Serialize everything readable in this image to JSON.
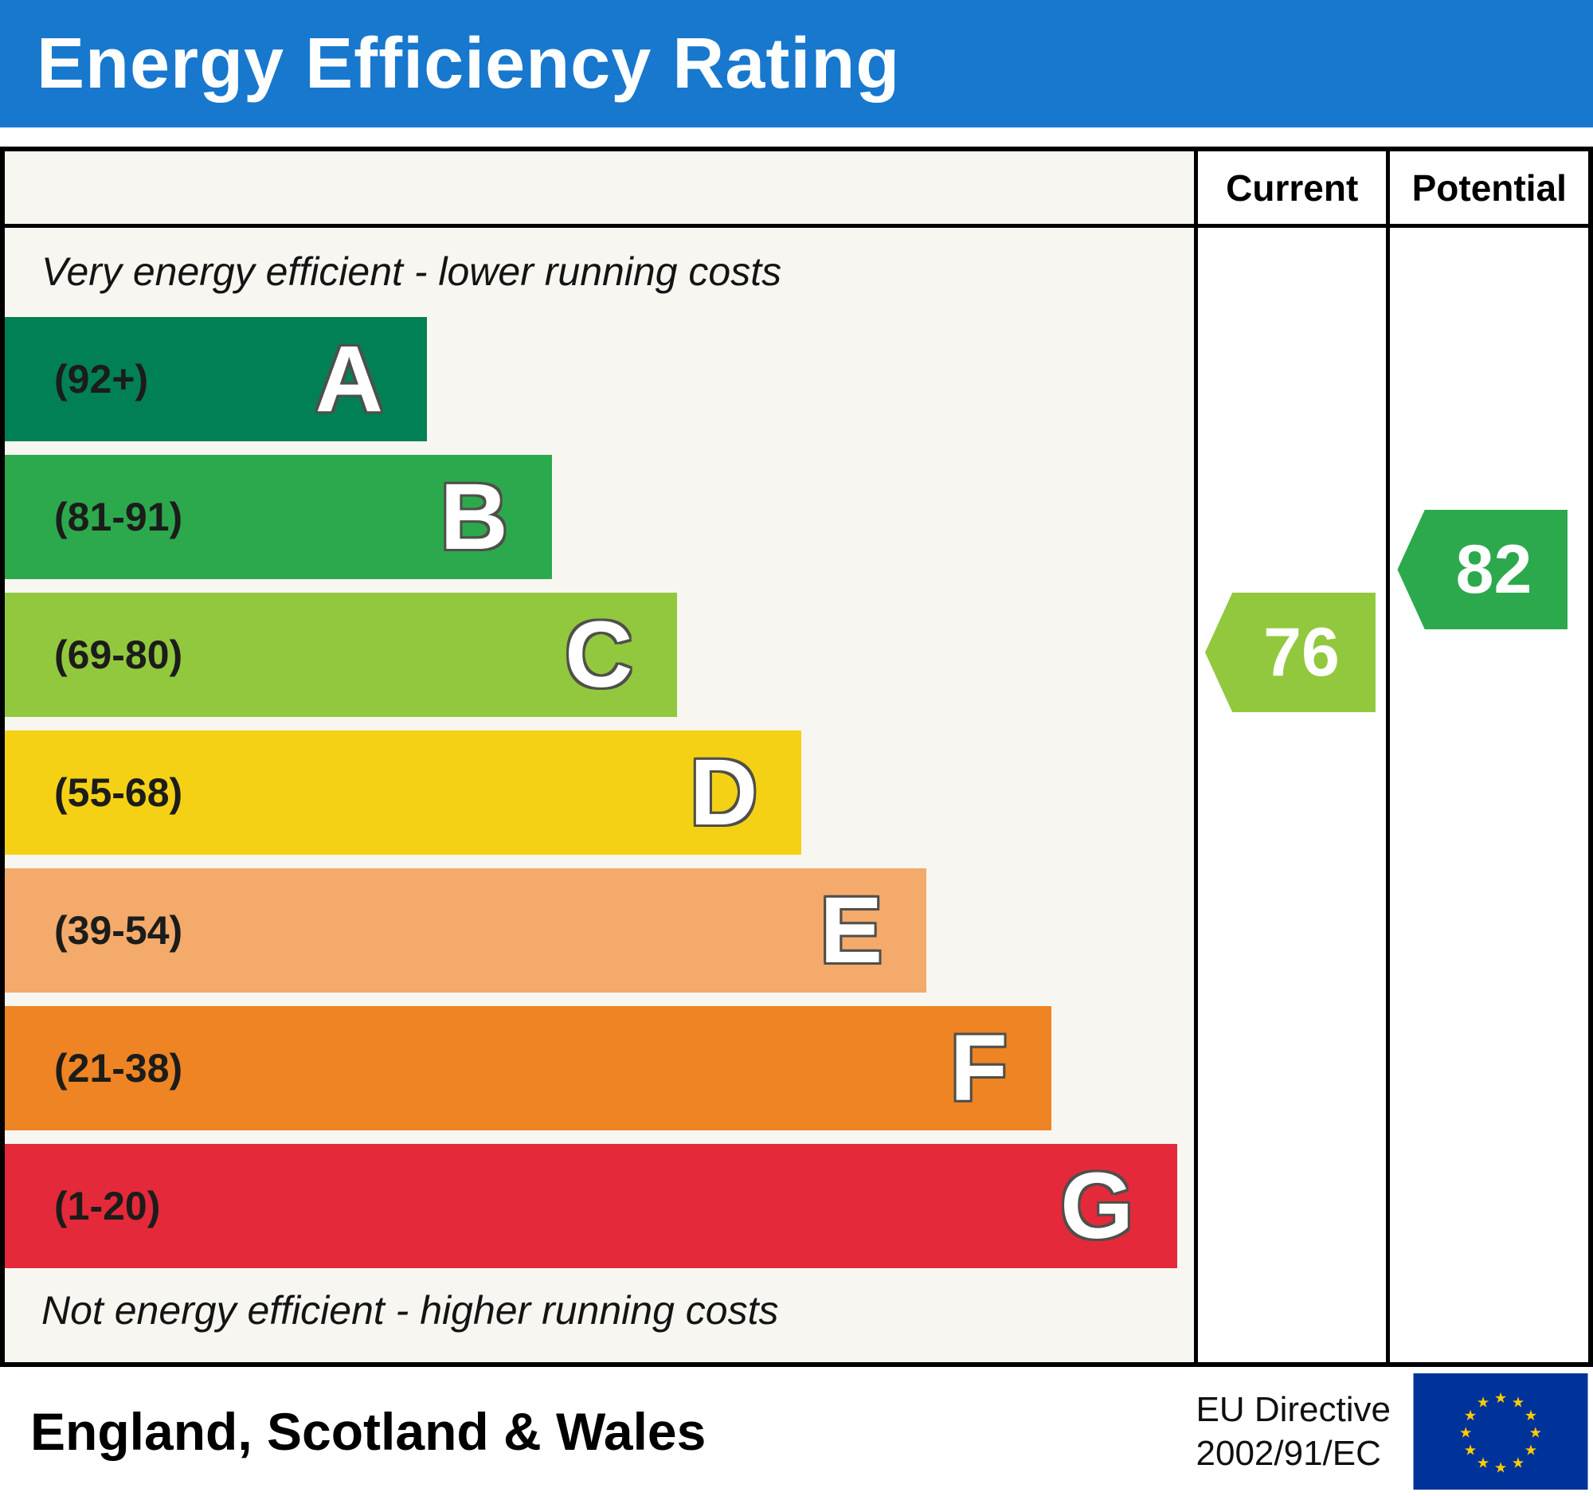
{
  "header": {
    "title": "Energy Efficiency Rating",
    "background": "#1778ce"
  },
  "table": {
    "current_header": "Current",
    "potential_header": "Potential"
  },
  "chart_data": {
    "type": "bar",
    "title": "Energy Efficiency Rating",
    "subtitle_top": "Very energy efficient - lower running costs",
    "subtitle_bottom": "Not energy efficient - higher running costs",
    "scale_range": [
      1,
      100
    ],
    "bands": [
      {
        "letter": "A",
        "range": "(92+)",
        "color": "#008054",
        "width_pct": 35.5
      },
      {
        "letter": "B",
        "range": "(81-91)",
        "color": "#2ca94d",
        "width_pct": 46.0
      },
      {
        "letter": "C",
        "range": "(69-80)",
        "color": "#92c83e",
        "width_pct": 56.5
      },
      {
        "letter": "D",
        "range": "(55-68)",
        "color": "#f5d116",
        "width_pct": 67.0
      },
      {
        "letter": "E",
        "range": "(39-54)",
        "color": "#f3aa6b",
        "width_pct": 77.5
      },
      {
        "letter": "F",
        "range": "(21-38)",
        "color": "#ee8423",
        "width_pct": 88.0
      },
      {
        "letter": "G",
        "range": "(1-20)",
        "color": "#e4293b",
        "width_pct": 98.6
      }
    ],
    "current": {
      "label": "Current",
      "value": 76,
      "band": "C",
      "color": "#92c83e"
    },
    "potential": {
      "label": "Potential",
      "value": 82,
      "band": "B",
      "color": "#2ca94d"
    }
  },
  "footer": {
    "region": "England, Scotland & Wales",
    "directive_line1": "EU Directive",
    "directive_line2": "2002/91/EC",
    "eu_flag": {
      "background": "#003399",
      "star_color": "#ffcc00",
      "star_count": 12
    }
  }
}
